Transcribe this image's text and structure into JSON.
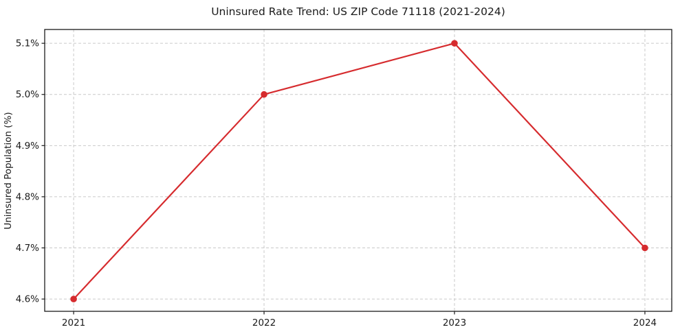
{
  "chart_data": {
    "type": "line",
    "title": "Uninsured Rate Trend: US ZIP Code 71118 (2021-2024)",
    "xlabel": "",
    "ylabel": "Uninsured Population (%)",
    "x": [
      2021,
      2022,
      2023,
      2024
    ],
    "series": [
      {
        "name": "uninsured-rate",
        "values": [
          4.6,
          5.0,
          5.1,
          4.7
        ],
        "color": "#d62b2e",
        "marker": "circle"
      }
    ],
    "x_ticks": {
      "values": [
        2021,
        2022,
        2023,
        2024
      ],
      "labels": [
        "2021",
        "2022",
        "2023",
        "2024"
      ]
    },
    "y_ticks": {
      "values": [
        4.6,
        4.7,
        4.8,
        4.9,
        5.0,
        5.1
      ],
      "labels": [
        "4.6%",
        "4.7%",
        "4.8%",
        "4.9%",
        "5.0%",
        "5.1%"
      ]
    },
    "xlim": [
      2020.848,
      2024.141
    ],
    "ylim": [
      4.576,
      5.127
    ],
    "grid": true,
    "legend": false,
    "styles": {
      "grid_color": "#c9c9c9",
      "axis_color": "#1a1a1a",
      "background": "#ffffff"
    }
  }
}
